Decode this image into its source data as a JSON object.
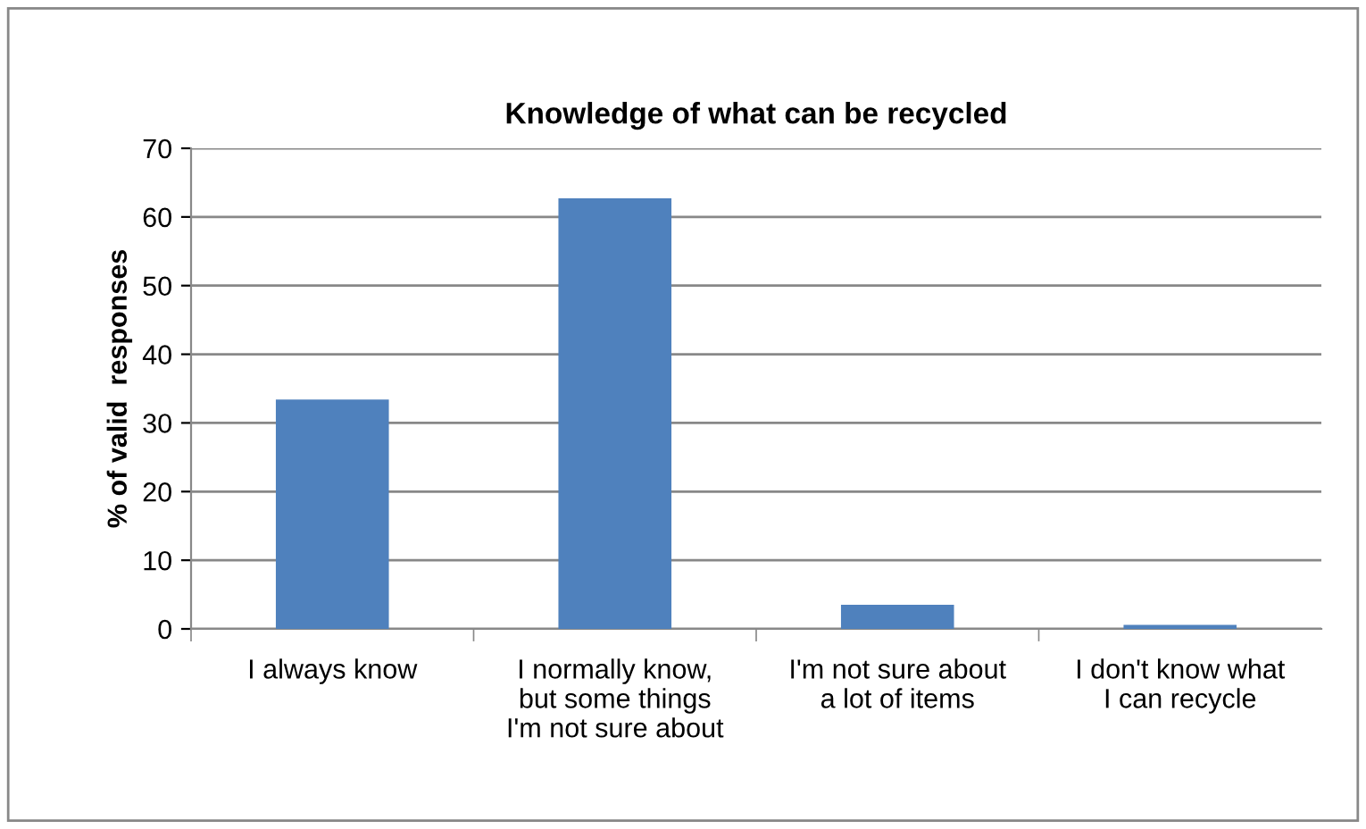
{
  "chart_data": {
    "type": "bar",
    "title": "Knowledge of what can be recycled",
    "ylabel": "% of valid  responses",
    "categories": [
      "I always know",
      "I normally know,\nbut some things\nI'm not sure about",
      "I'm not sure about\na lot of items",
      "I don't know what\nI can recycle"
    ],
    "values": [
      33.4,
      62.7,
      3.5,
      0.6
    ],
    "color": "#4f81bd",
    "ylim": [
      0,
      70
    ],
    "yticks": [
      0,
      10,
      20,
      30,
      40,
      50,
      60,
      70
    ],
    "grid": "y",
    "legend": false
  }
}
